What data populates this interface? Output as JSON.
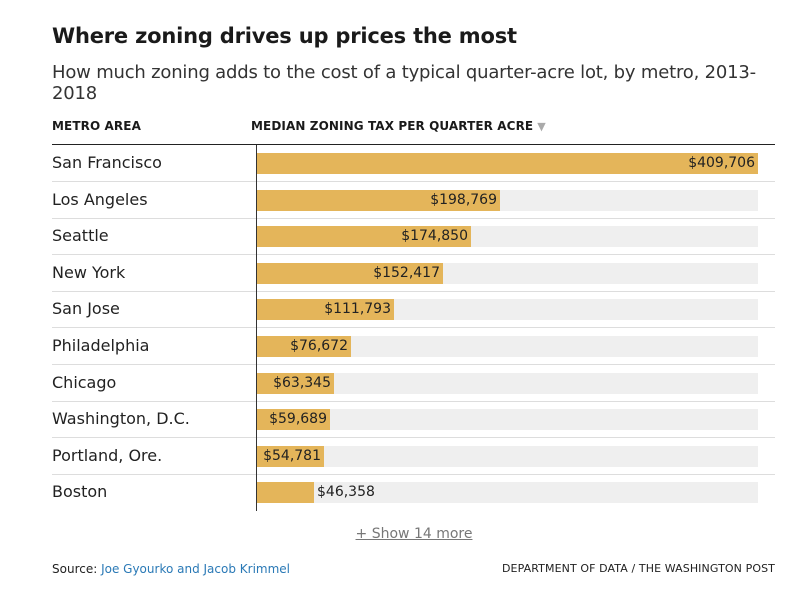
{
  "header": {
    "title": "Where zoning drives up prices the most",
    "subtitle": "How much zoning adds to the cost of a typical quarter-acre lot, by metro, 2013-2018"
  },
  "table_headers": {
    "metro": "METRO AREA",
    "tax": "MEDIAN ZONING TAX PER QUARTER ACRE",
    "sort_icon": "sort-down-icon"
  },
  "chart_data": {
    "type": "bar",
    "orientation": "horizontal",
    "title": "Where zoning drives up prices the most",
    "subtitle": "How much zoning adds to the cost of a typical quarter-acre lot, by metro, 2013-2018",
    "xlabel": "MEDIAN ZONING TAX PER QUARTER ACRE",
    "ylabel": "METRO AREA",
    "xlim": [
      0,
      409706
    ],
    "categories": [
      "San Francisco",
      "Los Angeles",
      "Seattle",
      "New York",
      "San Jose",
      "Philadelphia",
      "Chicago",
      "Washington, D.C.",
      "Portland, Ore.",
      "Boston"
    ],
    "values": [
      409706,
      198769,
      174850,
      152417,
      111793,
      76672,
      63345,
      59689,
      54781,
      46358
    ],
    "value_labels": [
      "$409,706",
      "$198,769",
      "$174,850",
      "$152,417",
      "$111,793",
      "$76,672",
      "$63,345",
      "$59,689",
      "$54,781",
      "$46,358"
    ],
    "bar_color": "#e4b55a",
    "track_color": "#efefef"
  },
  "show_more": "+ Show 14 more",
  "footer": {
    "source_prefix": "Source: ",
    "source_link": "Joe Gyourko and Jacob Krimmel",
    "credit": "DEPARTMENT OF DATA / THE WASHINGTON POST"
  },
  "colors": {
    "link": "#2a79b6",
    "bar": "#e4b55a"
  }
}
